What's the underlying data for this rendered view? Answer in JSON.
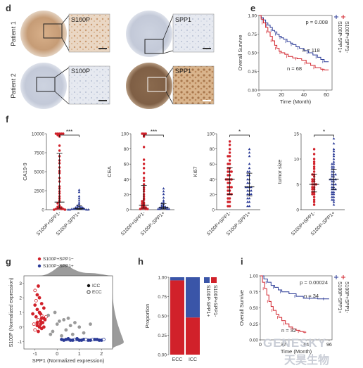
{
  "panels": {
    "d": {
      "label": "d",
      "rows": [
        "Patient 1",
        "Patient 2"
      ],
      "stains": [
        [
          "S100P",
          "SPP1"
        ],
        [
          "S100P",
          "SPP1"
        ]
      ]
    },
    "e": {
      "label": "e"
    },
    "f": {
      "label": "f"
    },
    "g": {
      "label": "g"
    },
    "h": {
      "label": "h"
    },
    "i": {
      "label": "i"
    }
  },
  "watermark": {
    "text_en": "GENESKY",
    "text_cn": "天昊生物"
  },
  "colors": {
    "red": "#d1212a",
    "blue": "#2a3a96",
    "gray": "#9a9a9a"
  },
  "chart_data": [
    {
      "id": "e",
      "type": "line",
      "title": "",
      "xlabel": "Time (Month)",
      "ylabel": "Overall Survive",
      "xlim": [
        0,
        65
      ],
      "ylim": [
        0,
        1.0
      ],
      "xticks": [
        "0",
        "20",
        "40",
        "60"
      ],
      "yticks": [
        "0.00",
        "0.25",
        "0.50",
        "0.75",
        "1.00"
      ],
      "pvalue": "p = 0.008",
      "legend": [
        "S100P-SPP1+",
        "S100P+SPP1-"
      ],
      "annotations": [
        "n = 118",
        "n = 68"
      ],
      "series": [
        {
          "name": "S100P-SPP1+",
          "color": "#2a3a96",
          "x": [
            0,
            2,
            4,
            6,
            8,
            10,
            12,
            14,
            16,
            18,
            20,
            22,
            25,
            28,
            30,
            33,
            36,
            40,
            44,
            48,
            52,
            55,
            58,
            62
          ],
          "y": [
            1.0,
            0.97,
            0.94,
            0.9,
            0.87,
            0.84,
            0.8,
            0.78,
            0.75,
            0.72,
            0.7,
            0.68,
            0.65,
            0.63,
            0.61,
            0.58,
            0.56,
            0.53,
            0.5,
            0.47,
            0.44,
            0.41,
            0.38,
            0.38
          ]
        },
        {
          "name": "S100P+SPP1-",
          "color": "#d1212a",
          "x": [
            0,
            2,
            4,
            6,
            8,
            10,
            12,
            14,
            16,
            18,
            20,
            23,
            26,
            30,
            34,
            38,
            42,
            46,
            50,
            55,
            58,
            62
          ],
          "y": [
            1.0,
            0.95,
            0.9,
            0.84,
            0.78,
            0.72,
            0.66,
            0.6,
            0.56,
            0.52,
            0.5,
            0.48,
            0.45,
            0.43,
            0.42,
            0.4,
            0.36,
            0.33,
            0.3,
            0.28,
            0.27,
            0.27
          ]
        }
      ]
    },
    {
      "id": "f1",
      "type": "scatter",
      "ylabel": "CA19-9",
      "ylim": [
        0,
        10000
      ],
      "yticks": [
        "0",
        "2500",
        "5000",
        "7500",
        "10000"
      ],
      "categories": [
        "S100P+SPP1-",
        "S100P-SPP1+"
      ],
      "sig": "***",
      "group_colors": [
        "#d1212a",
        "#2a3a96"
      ],
      "group_stats": [
        {
          "median": 1000,
          "q1": 200,
          "q3": 7400
        },
        {
          "median": 150,
          "q1": 50,
          "q3": 500
        }
      ],
      "series": [
        {
          "name": "S100P+SPP1-",
          "values": [
            10000,
            10000,
            10000,
            10000,
            10000,
            9900,
            9800,
            9600,
            8400,
            7800,
            7000,
            6500,
            6100,
            5600,
            5100,
            4800,
            4200,
            3700,
            3100,
            2800,
            2400,
            2100,
            1800,
            1500,
            1200,
            1000,
            800,
            600,
            500,
            400,
            300,
            200,
            150,
            100,
            80,
            50,
            30,
            20
          ]
        },
        {
          "name": "S100P-SPP1+",
          "values": [
            2600,
            2300,
            1800,
            1500,
            1200,
            900,
            700,
            600,
            500,
            400,
            350,
            300,
            250,
            200,
            180,
            150,
            120,
            100,
            80,
            60,
            50,
            40,
            30,
            20,
            10
          ]
        }
      ]
    },
    {
      "id": "f2",
      "type": "scatter",
      "ylabel": "CEA",
      "ylim": [
        0,
        100
      ],
      "yticks": [
        "0",
        "20",
        "40",
        "60",
        "80",
        "100"
      ],
      "categories": [
        "S100P+SPP1-",
        "S100P-SPP1+"
      ],
      "sig": "***",
      "group_colors": [
        "#d1212a",
        "#2a3a96"
      ],
      "group_stats": [
        {
          "median": 6,
          "q1": 2,
          "q3": 32
        },
        {
          "median": 3,
          "q1": 1,
          "q3": 8
        }
      ],
      "series": [
        {
          "name": "S100P+SPP1-",
          "values": [
            100,
            100,
            100,
            98,
            96,
            82,
            66,
            60,
            55,
            48,
            42,
            38,
            33,
            30,
            27,
            24,
            20,
            18,
            15,
            13,
            11,
            9,
            8,
            7,
            6,
            5,
            4,
            3,
            2,
            2,
            1,
            1,
            1
          ]
        },
        {
          "name": "S100P-SPP1+",
          "values": [
            28,
            24,
            20,
            16,
            12,
            10,
            8,
            7,
            6,
            5,
            4,
            4,
            3,
            3,
            2,
            2,
            2,
            1,
            1,
            1,
            1
          ]
        }
      ]
    },
    {
      "id": "f3",
      "type": "scatter",
      "ylabel": "Ki67",
      "ylim": [
        0,
        100
      ],
      "yticks": [
        "0",
        "20",
        "40",
        "60",
        "80",
        "100"
      ],
      "categories": [
        "S100P+SPP1-",
        "S100P-SPP1+"
      ],
      "sig": "*",
      "group_colors": [
        "#d1212a",
        "#2a3a96"
      ],
      "group_stats": [
        {
          "median": 40,
          "q1": 20,
          "q3": 55
        },
        {
          "median": 30,
          "q1": 18,
          "q3": 48
        }
      ],
      "series": [
        {
          "name": "S100P+SPP1-",
          "values": [
            90,
            85,
            80,
            75,
            70,
            70,
            65,
            60,
            60,
            55,
            55,
            50,
            50,
            50,
            45,
            45,
            40,
            40,
            40,
            40,
            35,
            35,
            30,
            30,
            30,
            25,
            25,
            20,
            20,
            20,
            15,
            15,
            10,
            10,
            5,
            5
          ]
        },
        {
          "name": "S100P-SPP1+",
          "values": [
            80,
            75,
            70,
            60,
            55,
            50,
            50,
            45,
            45,
            40,
            40,
            35,
            35,
            30,
            30,
            30,
            30,
            25,
            25,
            25,
            20,
            20,
            20,
            15,
            15,
            10,
            10,
            5,
            5
          ]
        }
      ]
    },
    {
      "id": "f4",
      "type": "scatter",
      "ylabel": "tumor size",
      "ylim": [
        0,
        15
      ],
      "yticks": [
        "0",
        "5",
        "10",
        "15"
      ],
      "categories": [
        "S100P+SPP1-",
        "S100P-SPP1+"
      ],
      "sig": "*",
      "group_colors": [
        "#d1212a",
        "#2a3a96"
      ],
      "group_stats": [
        {
          "median": 5,
          "q1": 3.5,
          "q3": 7
        },
        {
          "median": 6,
          "q1": 4,
          "q3": 8
        }
      ],
      "series": [
        {
          "name": "S100P+SPP1-",
          "values": [
            12,
            11,
            10,
            9.5,
            9,
            8.5,
            8,
            7.5,
            7,
            7,
            6.5,
            6,
            6,
            5.5,
            5.5,
            5,
            5,
            5,
            4.5,
            4.5,
            4,
            4,
            3.5,
            3.5,
            3,
            3,
            2.5,
            2,
            1.5,
            1
          ]
        },
        {
          "name": "S100P-SPP1+",
          "values": [
            14,
            13,
            12,
            11.5,
            11,
            10.5,
            10,
            9.5,
            9,
            9,
            8.5,
            8.5,
            8,
            8,
            7.5,
            7.5,
            7,
            7,
            7,
            6.5,
            6.5,
            6,
            6,
            6,
            6,
            5.5,
            5.5,
            5,
            5,
            5,
            4.5,
            4.5,
            4,
            4,
            4,
            3.5,
            3.5,
            3,
            3,
            2.5,
            2.5,
            2,
            2,
            1.5,
            1
          ]
        }
      ]
    },
    {
      "id": "g",
      "type": "scatter",
      "xlabel": "SPP1 (Normalized expression)",
      "ylabel": "S100P (Normalized expression)",
      "xlim": [
        -1.5,
        2.5
      ],
      "ylim": [
        -1.5,
        3.5
      ],
      "xticks": [
        "-1",
        "0",
        "1",
        "2"
      ],
      "yticks": [
        "-1",
        "0",
        "1",
        "2",
        "3"
      ],
      "legend": [
        "S100P+SPP1−",
        "S100P−SPP1+",
        "ICC",
        "ECC"
      ],
      "series": [
        {
          "name": "S100P+SPP1−",
          "color": "#d1212a",
          "x": [
            -1.0,
            -0.9,
            -0.8,
            -0.7,
            -0.6,
            -1.1,
            -0.95,
            -0.85,
            -0.75,
            -0.65,
            -0.55,
            -1.05,
            -0.9,
            -0.8,
            -0.7,
            -1.0,
            -0.85,
            -0.75,
            -0.6,
            -0.95,
            -0.8,
            -0.7,
            -0.9,
            -1.0,
            -0.85,
            -0.6,
            -0.75,
            -0.5,
            -0.9,
            -0.7
          ],
          "y": [
            1.5,
            1.2,
            1.0,
            0.8,
            0.6,
            0.9,
            0.7,
            0.5,
            0.4,
            0.3,
            0.5,
            0.2,
            0.1,
            0.0,
            -0.1,
            -0.2,
            -0.3,
            0.2,
            0.0,
            1.8,
            2.0,
            1.6,
            2.2,
            2.5,
            2.8,
            1.3,
            0.9,
            0.7,
            0.3,
            0.6
          ]
        },
        {
          "name": "S100P−SPP1+",
          "color": "#2a3a96",
          "x": [
            0.2,
            0.4,
            0.6,
            0.8,
            1.0,
            1.2,
            1.4,
            1.6,
            1.8,
            2.0,
            0.3,
            0.5,
            0.7,
            0.9,
            1.1,
            1.3,
            1.5,
            1.7,
            1.9,
            2.1,
            0.5,
            0.9
          ],
          "y": [
            -0.85,
            -0.85,
            -0.9,
            -0.85,
            -0.9,
            -0.85,
            -0.9,
            -0.85,
            -0.85,
            -0.9,
            -0.9,
            -0.85,
            -0.9,
            -0.85,
            -0.9,
            -0.85,
            -0.9,
            -0.85,
            -0.9,
            -0.85,
            -0.8,
            -0.8
          ]
        },
        {
          "name": "other",
          "color": "#9a9a9a",
          "x": [
            -0.4,
            0.0,
            0.3,
            0.6,
            1.0,
            -0.2,
            0.4,
            0.8,
            1.2,
            -0.1,
            0.2,
            0.5,
            1.5,
            -0.3,
            0.1,
            0.7
          ],
          "y": [
            0.8,
            0.2,
            0.5,
            0.1,
            0.0,
            -0.3,
            -0.2,
            0.3,
            -0.4,
            1.0,
            -0.6,
            0.6,
            0.2,
            -0.5,
            0.4,
            -0.5
          ]
        }
      ]
    },
    {
      "id": "h",
      "type": "bar",
      "ylabel": "Proportion",
      "categories": [
        "ECC",
        "ICC"
      ],
      "ylim": [
        0,
        1.0
      ],
      "yticks": [
        "0.00",
        "0.25",
        "0.50",
        "0.75",
        "1.00"
      ],
      "legend": [
        "S100P-SPP1+",
        "S100P+SPP1-"
      ],
      "series": [
        {
          "name": "S100P+SPP1-",
          "color": "#d1212a",
          "values": [
            0.96,
            0.48
          ]
        },
        {
          "name": "S100P-SPP1+",
          "color": "#3a55a8",
          "values": [
            0.04,
            0.52
          ]
        }
      ]
    },
    {
      "id": "i",
      "type": "line",
      "xlabel": "Time (Month)",
      "ylabel": "Overall Survive",
      "xlim": [
        0,
        100
      ],
      "ylim": [
        0,
        1.0
      ],
      "xticks": [
        "0",
        "32",
        "64",
        "96"
      ],
      "yticks": [
        "0.00",
        "0.25",
        "0.50",
        "0.75",
        "1.00"
      ],
      "pvalue": "p = 0.00024",
      "legend": [
        "S100P-SPP1+",
        "S100P+SPP1-"
      ],
      "annotations": [
        "n = 34",
        "n = 32"
      ],
      "series": [
        {
          "name": "S100P-SPP1+",
          "color": "#2a3a96",
          "x": [
            0,
            5,
            10,
            15,
            20,
            25,
            30,
            40,
            50,
            60,
            70,
            80,
            90,
            96
          ],
          "y": [
            1.0,
            0.95,
            0.9,
            0.85,
            0.82,
            0.78,
            0.75,
            0.72,
            0.68,
            0.65,
            0.65,
            0.64,
            0.64,
            0.64
          ]
        },
        {
          "name": "S100P+SPP1-",
          "color": "#d1212a",
          "x": [
            0,
            3,
            6,
            9,
            12,
            15,
            18,
            22,
            26,
            30,
            35,
            40,
            45,
            50,
            55,
            60,
            64
          ],
          "y": [
            1.0,
            0.9,
            0.8,
            0.7,
            0.6,
            0.52,
            0.46,
            0.4,
            0.35,
            0.3,
            0.25,
            0.2,
            0.17,
            0.15,
            0.13,
            0.12,
            0.12
          ]
        }
      ]
    }
  ]
}
